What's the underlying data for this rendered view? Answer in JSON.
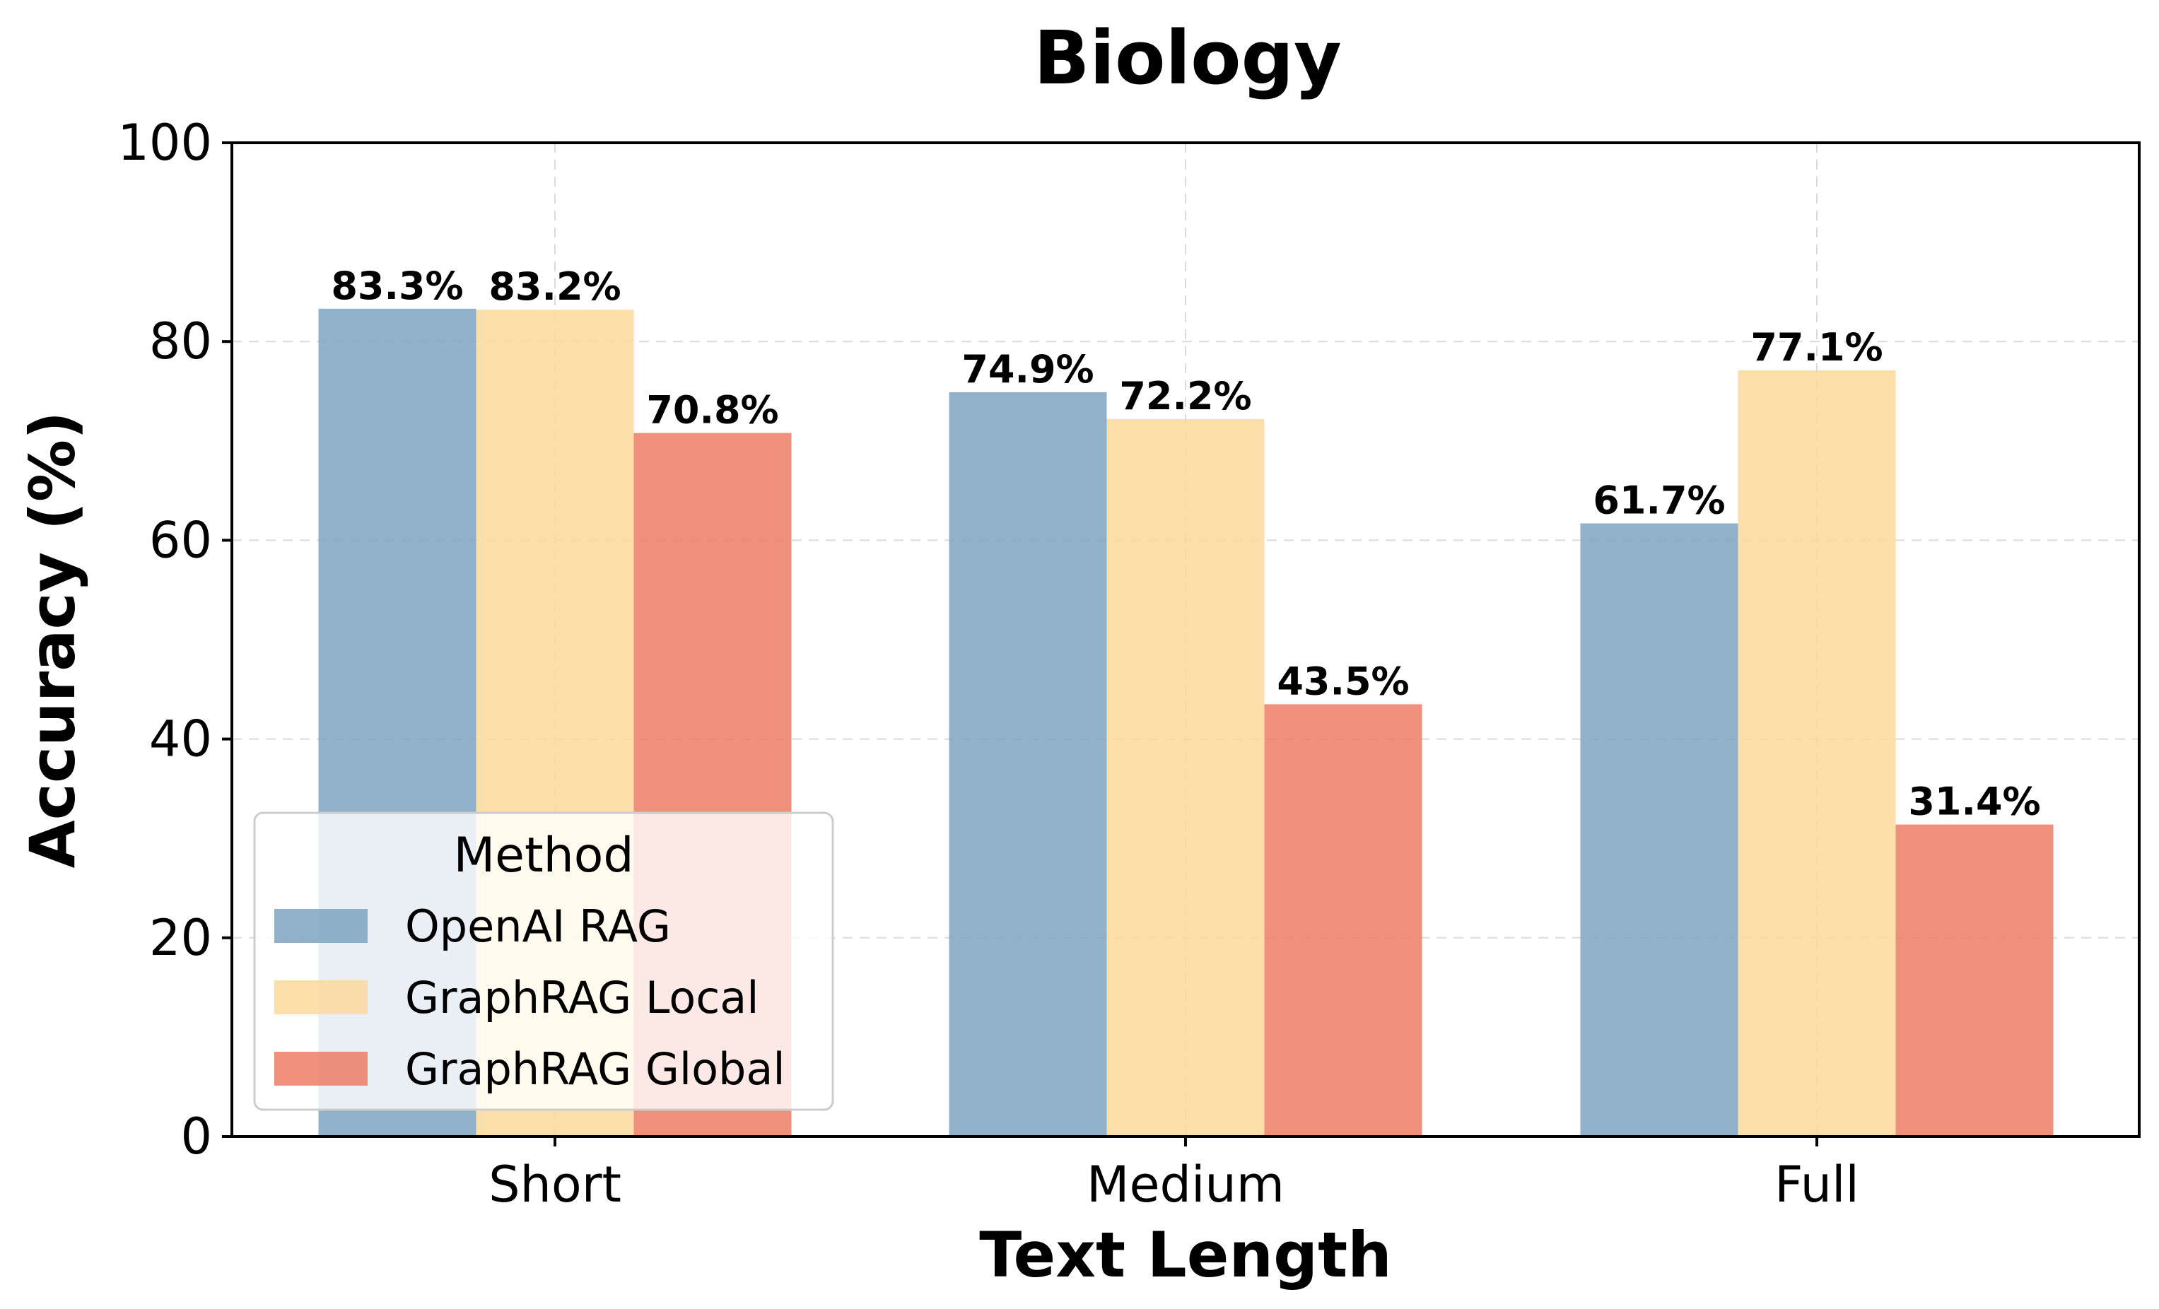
{
  "chart_data": {
    "type": "bar",
    "title": "Biology",
    "xlabel": "Text Length",
    "ylabel": "Accuracy (%)",
    "categories": [
      "Short",
      "Medium",
      "Full"
    ],
    "ylim": [
      0,
      100
    ],
    "yticks": [
      "0",
      "20",
      "40",
      "60",
      "80",
      "100"
    ],
    "grid": true,
    "legend": {
      "title": "Method",
      "placement": "lower-left"
    },
    "series": [
      {
        "name": "OpenAI RAG",
        "color": "#7ca3bf",
        "values": [
          83.3,
          74.9,
          61.7
        ],
        "labels": [
          "83.3%",
          "74.9%",
          "61.7%"
        ]
      },
      {
        "name": "GraphRAG Local",
        "color": "#fbd89c",
        "values": [
          83.2,
          72.2,
          77.1
        ],
        "labels": [
          "83.2%",
          "72.2%",
          "77.1%"
        ]
      },
      {
        "name": "GraphRAG Global",
        "color": "#ec7c66",
        "values": [
          70.8,
          43.5,
          31.4
        ],
        "labels": [
          "70.8%",
          "43.5%",
          "31.4%"
        ]
      }
    ]
  }
}
